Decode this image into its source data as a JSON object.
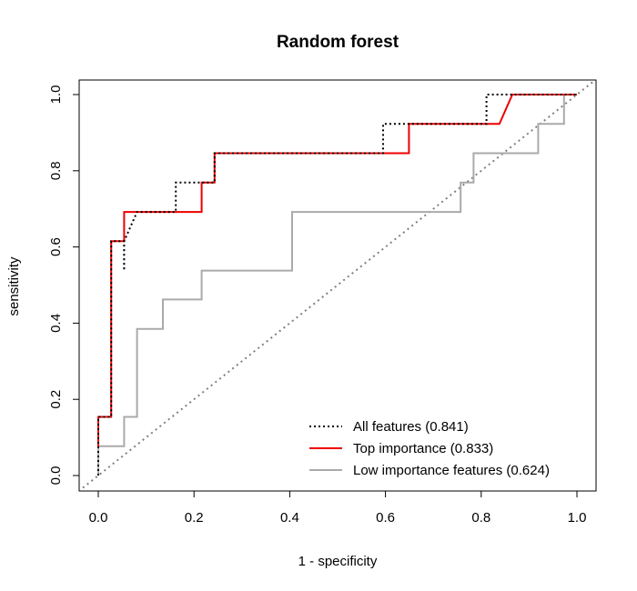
{
  "chart_data": {
    "type": "line",
    "title": "Random forest",
    "xlabel": "1 - specificity",
    "ylabel": "sensitivity",
    "xlim": [
      0,
      1
    ],
    "ylim": [
      0,
      1
    ],
    "xticks": [
      "0.0",
      "0.2",
      "0.4",
      "0.6",
      "0.8",
      "1.0"
    ],
    "yticks": [
      "0.0",
      "0.2",
      "0.4",
      "0.6",
      "0.8",
      "1.0"
    ],
    "legend_position": "bottom-right",
    "reference_line": {
      "from": [
        0,
        0
      ],
      "to": [
        1,
        1
      ],
      "color": "#808080",
      "style": "dotted"
    },
    "series": [
      {
        "name": "All features (0.841)",
        "color": "#000000",
        "style": "dotted",
        "x": [
          0,
          0,
          0.027,
          0.027,
          0.054,
          0.054,
          0.054,
          0.081,
          0.162,
          0.162,
          0.216,
          0.216,
          0.243,
          0.243,
          0.595,
          0.595,
          0.649,
          0.649,
          0.811,
          0.811,
          0.865,
          1
        ],
        "y": [
          0,
          0.154,
          0.154,
          0.615,
          0.615,
          0.538,
          0.615,
          0.692,
          0.692,
          0.769,
          0.769,
          0.769,
          0.769,
          0.846,
          0.846,
          0.923,
          0.923,
          0.923,
          0.923,
          1,
          1,
          1
        ]
      },
      {
        "name": "Top importance (0.833)",
        "color": "#ee0000",
        "style": "solid",
        "x": [
          0,
          0,
          0.027,
          0.027,
          0.054,
          0.054,
          0.216,
          0.216,
          0.243,
          0.243,
          0.649,
          0.649,
          0.838,
          0.865,
          1
        ],
        "y": [
          0.077,
          0.154,
          0.154,
          0.615,
          0.615,
          0.692,
          0.692,
          0.769,
          0.769,
          0.846,
          0.846,
          0.923,
          0.923,
          1,
          1
        ]
      },
      {
        "name": "Low importance features (0.624)",
        "color": "#aaaaaa",
        "style": "solid",
        "x": [
          0,
          0,
          0.054,
          0.054,
          0.081,
          0.081,
          0.135,
          0.135,
          0.216,
          0.216,
          0.405,
          0.405,
          0.757,
          0.757,
          0.784,
          0.784,
          0.919,
          0.919,
          0.973,
          0.973
        ],
        "y": [
          0,
          0.077,
          0.077,
          0.154,
          0.154,
          0.385,
          0.385,
          0.462,
          0.462,
          0.538,
          0.538,
          0.692,
          0.692,
          0.769,
          0.769,
          0.846,
          0.846,
          0.923,
          0.923,
          1
        ]
      }
    ]
  }
}
